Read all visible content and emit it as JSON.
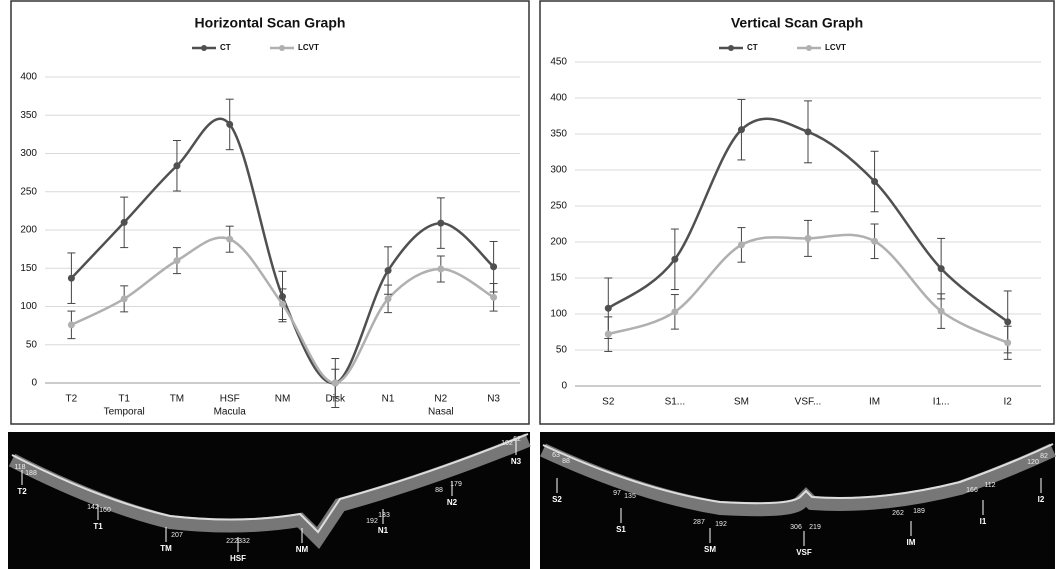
{
  "chart_data": [
    {
      "type": "line",
      "title": "Horizontal Scan Graph",
      "categories": [
        "T2",
        "T1",
        "TM",
        "HSF",
        "NM",
        "Disk",
        "N1",
        "N2",
        "N3"
      ],
      "x_sublabels": [
        null,
        "Temporal",
        null,
        "Macula",
        null,
        null,
        null,
        "Nasal",
        null
      ],
      "series": [
        {
          "name": "CT",
          "color": "#505050",
          "values": [
            137,
            210,
            284,
            338,
            113,
            0,
            147,
            209,
            152
          ],
          "errors": [
            33,
            33,
            33,
            33,
            33,
            32,
            31,
            33,
            33
          ]
        },
        {
          "name": "LCVT",
          "color": "#b0b0b0",
          "values": [
            76,
            110,
            160,
            188,
            103,
            0,
            110,
            149,
            112
          ],
          "errors": [
            18,
            17,
            17,
            17,
            20,
            18,
            18,
            17,
            18
          ]
        }
      ],
      "ylim": [
        0,
        400
      ],
      "yticks": [
        0,
        50,
        100,
        150,
        200,
        250,
        300,
        350,
        400
      ],
      "grid": true,
      "legend": "top",
      "smooth": true
    },
    {
      "type": "line",
      "title": "Vertical Scan Graph",
      "categories": [
        "S2",
        "S1...",
        "SM",
        "VSF...",
        "IM",
        "I1...",
        "I2"
      ],
      "series": [
        {
          "name": "CT",
          "color": "#505050",
          "values": [
            108,
            176,
            356,
            353,
            284,
            163,
            89
          ],
          "errors": [
            42,
            42,
            42,
            43,
            42,
            42,
            43
          ]
        },
        {
          "name": "LCVT",
          "color": "#b0b0b0",
          "values": [
            72,
            103,
            196,
            205,
            201,
            104,
            60
          ],
          "errors": [
            24,
            24,
            24,
            25,
            24,
            24,
            23
          ]
        }
      ],
      "ylim": [
        0,
        450
      ],
      "yticks": [
        0,
        50,
        100,
        150,
        200,
        250,
        300,
        350,
        400,
        450
      ],
      "grid": true,
      "legend": "top",
      "smooth": true
    }
  ],
  "images": [
    {
      "labels": [
        "118",
        "188",
        "T2",
        "142",
        "160",
        "T1",
        "207",
        "TM",
        "222",
        "332",
        "HSF",
        "NM",
        "192",
        "133",
        "N1",
        "88",
        "179",
        "N2",
        "102",
        "62",
        "N3"
      ]
    },
    {
      "labels": [
        "63",
        "88",
        "S2",
        "97",
        "135",
        "S1",
        "287",
        "192",
        "SM",
        "306",
        "219",
        "VSF",
        "262",
        "189",
        "IM",
        "166",
        "112",
        "I1",
        "120",
        "82",
        "I2"
      ]
    }
  ]
}
